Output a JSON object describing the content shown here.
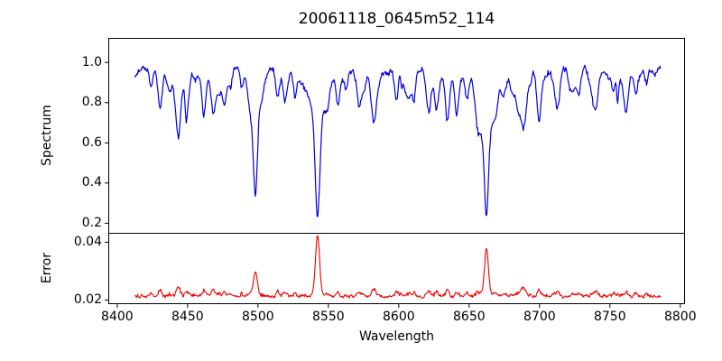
{
  "figure": {
    "title": "20061118_0645m52_114",
    "background": "#ffffff",
    "frame_color": "#000000",
    "text_color": "#000000"
  },
  "xaxis": {
    "label": "Wavelength",
    "ticks": [
      8400,
      8450,
      8500,
      8550,
      8600,
      8650,
      8700,
      8750,
      8800
    ],
    "xlim": [
      8394,
      8803
    ]
  },
  "chart_data": [
    {
      "type": "line",
      "panel": "spectrum",
      "ylabel": "Spectrum",
      "color": "#0000dd",
      "xlim": [
        8394,
        8803
      ],
      "ylim": [
        0.15,
        1.12
      ],
      "ytick_values": [
        0.2,
        0.4,
        0.6,
        0.8,
        1.0
      ],
      "ytick_labels": [
        "0.2",
        "0.4",
        "0.6",
        "0.8",
        "1.0"
      ],
      "x_start": 8412.5,
      "x_end": 8786,
      "x_step": 0.5,
      "continuum": 0.968,
      "noise_amp": 0.018,
      "seed": 7,
      "weak_line_count": 110,
      "strong_lines": [
        {
          "center": 8498.2,
          "core_depth": 0.45,
          "core_width": 1.4,
          "wing_depth": 0.12,
          "wing_width": 4.5,
          "min_value": 0.39
        },
        {
          "center": 8542.3,
          "core_depth": 0.56,
          "core_width": 1.7,
          "wing_depth": 0.17,
          "wing_width": 6.0,
          "min_value": 0.23
        },
        {
          "center": 8662.3,
          "core_depth": 0.52,
          "core_width": 1.6,
          "wing_depth": 0.15,
          "wing_width": 5.0,
          "min_value": 0.28
        }
      ],
      "medium_lines": [
        [
          8424.0,
          0.1,
          1.2
        ],
        [
          8430.5,
          0.19,
          1.5
        ],
        [
          8443.5,
          0.245,
          1.7
        ],
        [
          8450.5,
          0.12,
          1.3
        ],
        [
          8462.0,
          0.13,
          1.4
        ],
        [
          8468.5,
          0.145,
          1.5
        ],
        [
          8476.0,
          0.1,
          1.2
        ],
        [
          8488.5,
          0.09,
          1.1
        ],
        [
          8514.0,
          0.145,
          1.5
        ],
        [
          8518.5,
          0.1,
          1.1
        ],
        [
          8526.5,
          0.09,
          1.1
        ],
        [
          8556.5,
          0.08,
          1.1
        ],
        [
          8572.0,
          0.11,
          1.3
        ],
        [
          8582.5,
          0.165,
          1.6
        ],
        [
          8598.5,
          0.145,
          1.5
        ],
        [
          8611.0,
          0.08,
          1.1
        ],
        [
          8621.5,
          0.115,
          1.3
        ],
        [
          8634.0,
          0.12,
          1.4
        ],
        [
          8648.5,
          0.09,
          1.2
        ],
        [
          8674.5,
          0.09,
          1.2
        ],
        [
          8688.5,
          0.26,
          1.9
        ],
        [
          8699.5,
          0.11,
          1.3
        ],
        [
          8712.5,
          0.135,
          1.5
        ],
        [
          8728.0,
          0.115,
          1.3
        ],
        [
          8740.5,
          0.125,
          1.4
        ],
        [
          8752.5,
          0.11,
          1.3
        ],
        [
          8768.5,
          0.125,
          1.4
        ],
        [
          8776.0,
          0.08,
          1.1
        ]
      ],
      "emission_spikes": [
        [
          8600.6,
          0.085,
          0.7
        ]
      ]
    },
    {
      "type": "line",
      "panel": "error",
      "ylabel": "Error",
      "color": "#ee0000",
      "ylim": [
        0.0187,
        0.0431
      ],
      "ytick_values": [
        0.02,
        0.04
      ],
      "ytick_labels": [
        "0.02",
        "0.04"
      ],
      "baseline": 0.02115,
      "noise_amp": 0.0008,
      "peaks": [
        {
          "center": 8498.2,
          "amplitude": 0.0088,
          "width": 1.3,
          "peak_value": 0.03
        },
        {
          "center": 8542.3,
          "amplitude": 0.021,
          "width": 1.5,
          "peak_value": 0.042
        },
        {
          "center": 8662.3,
          "amplitude": 0.0165,
          "width": 1.4,
          "peak_value": 0.038
        }
      ],
      "medium_bump_scale": 0.012,
      "weak_bump_scale": 0.008
    }
  ]
}
